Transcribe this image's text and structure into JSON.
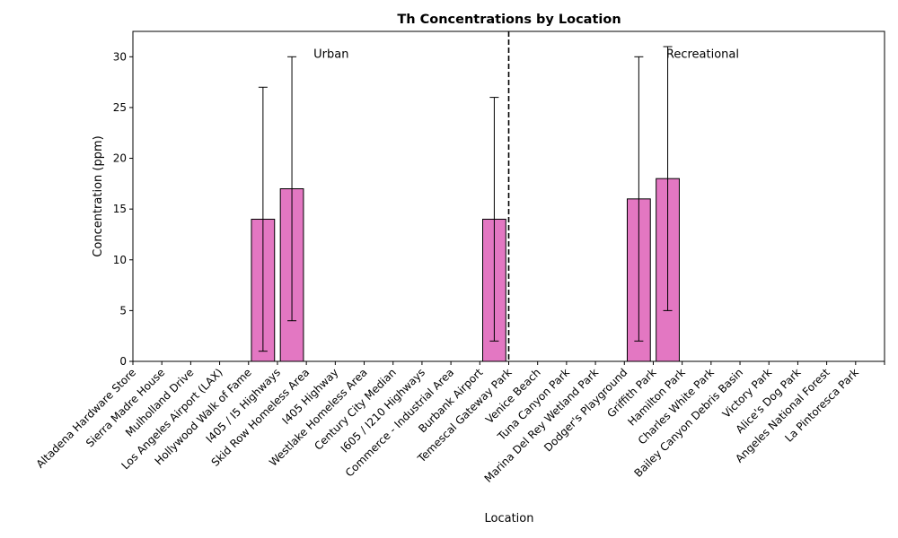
{
  "chart_data": {
    "type": "bar",
    "title": "Th Concentrations by Location",
    "xlabel": "Location",
    "ylabel": "Concentration (ppm)",
    "ylim": [
      0,
      32.5
    ],
    "yticks": [
      0,
      5,
      10,
      15,
      20,
      25,
      30
    ],
    "categories": [
      "Altadena Hardware Store",
      "Sierra Madre House",
      "Mulholland Drive",
      "Los Angeles Airport (LAX)",
      "Hollywood Walk of Fame",
      "I405 / I5 Highways",
      "Skid Row Homeless Area",
      "I405 Highway",
      "Westlake Homeless Area",
      "Century City Median",
      "I605 / I210 Highways",
      "Commerce - Industrial Area",
      "Burbank Airport",
      "Temescal Gateway Park",
      "Venice Beach",
      "Tuna Canyon Park",
      "Marina Del Rey Wetland Park",
      "Dodger's Playground",
      "Griffith Park",
      "Hamilton Park",
      "Charles White Park",
      "Bailey Canyon Debris Basin",
      "Victory Park",
      "Alice's Dog Park",
      "Angeles National Forest",
      "La Pintoresca Park"
    ],
    "values": [
      null,
      null,
      null,
      null,
      14,
      17,
      null,
      null,
      null,
      null,
      null,
      null,
      14,
      null,
      null,
      null,
      null,
      16,
      18,
      null,
      null,
      null,
      null,
      null,
      null,
      null
    ],
    "error_low": [
      null,
      null,
      null,
      null,
      1,
      4,
      null,
      null,
      null,
      null,
      null,
      null,
      2,
      null,
      null,
      null,
      null,
      2,
      5,
      null,
      null,
      null,
      null,
      null,
      null,
      null
    ],
    "error_high": [
      null,
      null,
      null,
      null,
      27,
      30,
      null,
      null,
      null,
      null,
      null,
      null,
      26,
      null,
      null,
      null,
      null,
      30,
      31,
      null,
      null,
      null,
      null,
      null,
      null,
      null
    ],
    "bar_color": "#e377c2",
    "divider_after_index": 12,
    "annotations": [
      {
        "text": "Urban",
        "x": 6,
        "y": 30
      },
      {
        "text": "Recreational",
        "x": 18.2,
        "y": 30
      }
    ],
    "grid": false
  }
}
